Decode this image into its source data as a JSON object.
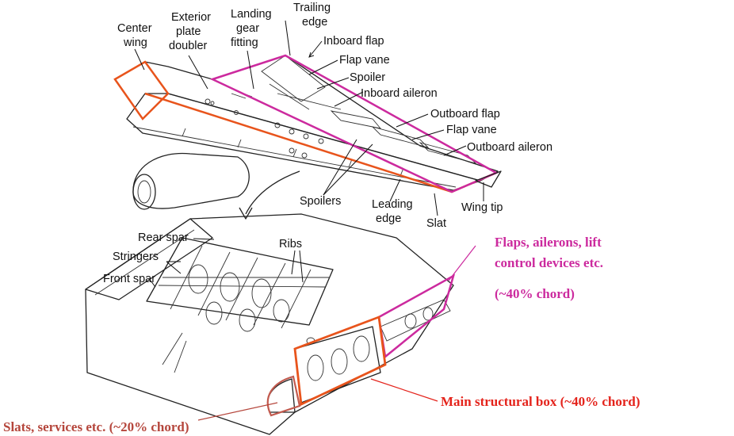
{
  "labels": {
    "center_wing": [
      "Center",
      "wing"
    ],
    "exterior_plate_doubler": [
      "Exterior",
      "plate",
      "doubler"
    ],
    "landing_gear_fitting": [
      "Landing",
      "gear",
      "fitting"
    ],
    "trailing_edge": [
      "Trailing",
      "edge"
    ],
    "inboard_flap": "Inboard flap",
    "flap_vane_1": "Flap vane",
    "spoiler": "Spoiler",
    "inboard_aileron": "Inboard aileron",
    "outboard_flap": "Outboard flap",
    "flap_vane_2": "Flap vane",
    "outboard_aileron": "Outboard aileron",
    "spoilers": "Spoilers",
    "leading_edge": [
      "Leading",
      "edge"
    ],
    "slat": "Slat",
    "wing_tip": "Wing tip",
    "rear_spar": "Rear spar",
    "stringers": "Stringers",
    "front_spar": "Front spar",
    "ribs": "Ribs"
  },
  "callouts": {
    "flaps": {
      "lines": [
        "Flaps, ailerons, lift",
        "control devices etc.",
        "(~40% chord)"
      ],
      "color": "#cc2a9e"
    },
    "main_box": {
      "text": "Main structural box (~40% chord)",
      "color": "#e4231b"
    },
    "slats": {
      "text": "Slats, services etc. (~20% chord)",
      "color": "#b5463c"
    }
  },
  "colors": {
    "magenta_outline": "#cc2a9e",
    "orange_outline": "#e8541c",
    "ink": "#222222"
  }
}
